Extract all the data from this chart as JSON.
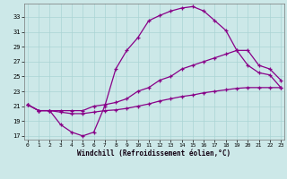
{
  "xlabel": "Windchill (Refroidissement éolien,°C)",
  "bg_color": "#cce8e8",
  "grid_color": "#aad4d4",
  "line_color": "#880088",
  "xlim_min": -0.3,
  "xlim_max": 23.3,
  "ylim_min": 16.5,
  "ylim_max": 34.8,
  "xticks": [
    0,
    1,
    2,
    3,
    4,
    5,
    6,
    7,
    8,
    9,
    10,
    11,
    12,
    13,
    14,
    15,
    16,
    17,
    18,
    19,
    20,
    21,
    22,
    23
  ],
  "yticks": [
    17,
    19,
    21,
    23,
    25,
    27,
    29,
    31,
    33
  ],
  "x_top": [
    0,
    1,
    2,
    3,
    4,
    5,
    6,
    7,
    8,
    9,
    10,
    11,
    12,
    13,
    14,
    15,
    16,
    17,
    18,
    19,
    20,
    21,
    22,
    23
  ],
  "y_top": [
    21.2,
    20.4,
    20.4,
    18.5,
    17.5,
    17.0,
    17.5,
    21.0,
    26.0,
    28.5,
    30.2,
    32.5,
    33.2,
    33.8,
    34.2,
    34.4,
    33.8,
    32.5,
    31.2,
    28.5,
    26.5,
    25.5,
    25.2,
    23.5
  ],
  "x_mid": [
    0,
    1,
    2,
    3,
    4,
    5,
    6,
    7,
    8,
    9,
    10,
    11,
    12,
    13,
    14,
    15,
    16,
    17,
    18,
    19,
    20,
    21,
    22,
    23
  ],
  "y_mid": [
    21.2,
    20.4,
    20.4,
    20.4,
    20.4,
    20.4,
    21.0,
    21.2,
    21.5,
    22.0,
    23.0,
    23.5,
    24.5,
    25.0,
    26.0,
    26.5,
    27.0,
    27.5,
    28.0,
    28.5,
    28.5,
    26.5,
    26.0,
    24.5
  ],
  "x_bot": [
    0,
    1,
    2,
    3,
    4,
    5,
    6,
    7,
    8,
    9,
    10,
    11,
    12,
    13,
    14,
    15,
    16,
    17,
    18,
    19,
    20,
    21,
    22,
    23
  ],
  "y_bot": [
    21.2,
    20.4,
    20.4,
    20.2,
    20.0,
    20.0,
    20.2,
    20.4,
    20.5,
    20.7,
    21.0,
    21.3,
    21.7,
    22.0,
    22.3,
    22.5,
    22.8,
    23.0,
    23.2,
    23.4,
    23.5,
    23.5,
    23.5,
    23.5
  ]
}
